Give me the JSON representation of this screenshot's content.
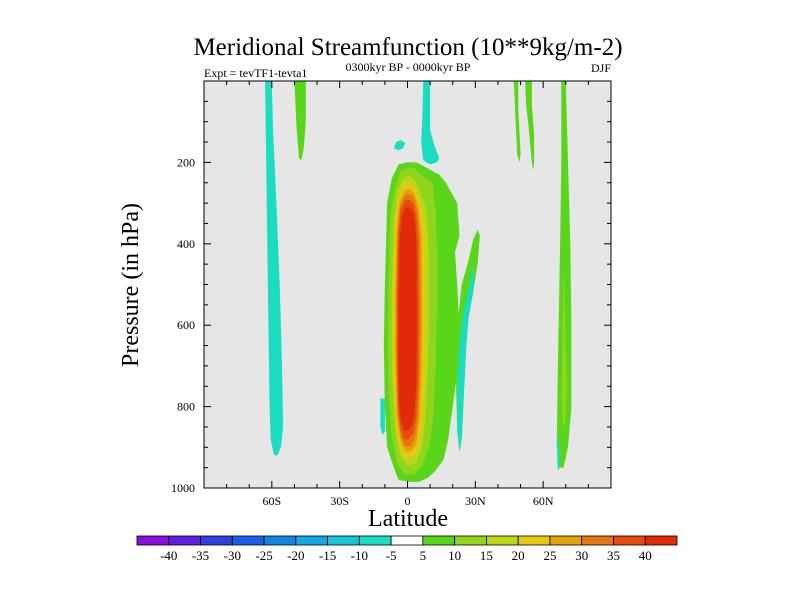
{
  "chart_data": {
    "type": "heatmap",
    "title": "Meridional Streamfunction (10**9kg/m-2)",
    "subtitle": "0300kyr BP - 0000kyr BP",
    "left_label": "Expt = tevTF1-tevta1",
    "right_label": "DJF",
    "xlabel": "Latitude",
    "ylabel": "Pressure (in hPa)",
    "xlim": [
      -90,
      90
    ],
    "ylim": [
      0,
      1000
    ],
    "y_inverted": true,
    "x_ticks": [
      {
        "value": -60,
        "label": "60S"
      },
      {
        "value": -30,
        "label": "30S"
      },
      {
        "value": 0,
        "label": "0"
      },
      {
        "value": 30,
        "label": "30N"
      },
      {
        "value": 60,
        "label": "60N"
      }
    ],
    "x_minor_ticks": [
      -80,
      -70,
      -50,
      -40,
      -20,
      -10,
      10,
      20,
      40,
      50,
      70,
      80
    ],
    "y_ticks": [
      {
        "value": 200,
        "label": "200"
      },
      {
        "value": 400,
        "label": "400"
      },
      {
        "value": 600,
        "label": "600"
      },
      {
        "value": 800,
        "label": "800"
      },
      {
        "value": 1000,
        "label": "1000"
      }
    ],
    "y_minor_ticks": [
      50,
      100,
      150,
      250,
      300,
      350,
      450,
      500,
      550,
      650,
      700,
      750,
      850,
      900,
      950
    ],
    "background_color": "#e6e6e6",
    "colorbar": {
      "levels": [
        "-40",
        "-35",
        "-30",
        "-25",
        "-20",
        "-15",
        "-10",
        "-5",
        "5",
        "10",
        "15",
        "20",
        "25",
        "30",
        "35",
        "40"
      ],
      "colors": [
        "#8a0fe0",
        "#5f1ee0",
        "#2f40e0",
        "#1f5fe6",
        "#0f86e6",
        "#12a8e6",
        "#16c6d6",
        "#1adcc0",
        "#ffffff",
        "#5ad61a",
        "#8fd61a",
        "#bcd61a",
        "#e6c80f",
        "#e6a10f",
        "#e6740f",
        "#e64a0f",
        "#e02a08"
      ]
    },
    "contours": [
      {
        "level": -5,
        "color": "#1adcc0",
        "points": [
          [
            -63,
            0
          ],
          [
            -60,
            0
          ],
          [
            -59.5,
            120
          ],
          [
            -58,
            300
          ],
          [
            -56.5,
            500
          ],
          [
            -55.5,
            700
          ],
          [
            -55,
            850
          ],
          [
            -56,
            900
          ],
          [
            -57.5,
            920
          ],
          [
            -59,
            920
          ],
          [
            -60.5,
            880
          ],
          [
            -61,
            800
          ],
          [
            -61.5,
            600
          ],
          [
            -62,
            400
          ],
          [
            -62.5,
            200
          ]
        ]
      },
      {
        "level": 5,
        "color": "#5ad61a",
        "points": [
          [
            -50,
            0
          ],
          [
            -45,
            0
          ],
          [
            -45,
            100
          ],
          [
            -46,
            170
          ],
          [
            -47,
            195
          ],
          [
            -48,
            190
          ],
          [
            -49,
            120
          ]
        ]
      },
      {
        "level": -5,
        "color": "#1adcc0",
        "points": [
          [
            7,
            0
          ],
          [
            10,
            0
          ],
          [
            10,
            120
          ],
          [
            12,
            160
          ],
          [
            14,
            190
          ],
          [
            13,
            200
          ],
          [
            10,
            205
          ],
          [
            7,
            195
          ],
          [
            6,
            150
          ],
          [
            6.5,
            100
          ]
        ]
      },
      {
        "level": -5,
        "color": "#1adcc0",
        "points": [
          [
            -5,
            150
          ],
          [
            -3,
            145
          ],
          [
            -1,
            152
          ],
          [
            -2,
            165
          ],
          [
            -4,
            170
          ],
          [
            -6,
            165
          ]
        ]
      },
      {
        "level": -5,
        "color": "#1adcc0",
        "points": [
          [
            -12,
            780
          ],
          [
            -10,
            780
          ],
          [
            -10,
            860
          ],
          [
            -11,
            870
          ],
          [
            -12,
            850
          ]
        ]
      },
      {
        "level": 5,
        "color": "#5ad61a",
        "points": [
          [
            -10,
            500
          ],
          [
            -9,
            300
          ],
          [
            -7,
            240
          ],
          [
            -4,
            205
          ],
          [
            0,
            200
          ],
          [
            4,
            200
          ],
          [
            9,
            215
          ],
          [
            14,
            230
          ],
          [
            17,
            250
          ],
          [
            22,
            300
          ],
          [
            23,
            380
          ],
          [
            21,
            420
          ],
          [
            22,
            500
          ],
          [
            23,
            620
          ],
          [
            22,
            720
          ],
          [
            20,
            800
          ],
          [
            18,
            880
          ],
          [
            16,
            930
          ],
          [
            12,
            960
          ],
          [
            9,
            975
          ],
          [
            5,
            985
          ],
          [
            1,
            985
          ],
          [
            -4,
            980
          ],
          [
            -6,
            950
          ],
          [
            -9,
            900
          ],
          [
            -10,
            800
          ],
          [
            -10.5,
            650
          ]
        ]
      },
      {
        "level": 10,
        "color": "#8fd61a",
        "points": [
          [
            -8.5,
            500
          ],
          [
            -7.5,
            330
          ],
          [
            -5.5,
            260
          ],
          [
            -3,
            220
          ],
          [
            0,
            212
          ],
          [
            3,
            215
          ],
          [
            7,
            235
          ],
          [
            11,
            250
          ],
          [
            12.5,
            320
          ],
          [
            13,
            420
          ],
          [
            13,
            560
          ],
          [
            12.5,
            700
          ],
          [
            11.5,
            820
          ],
          [
            9.5,
            900
          ],
          [
            6.5,
            945
          ],
          [
            3,
            965
          ],
          [
            -1,
            968
          ],
          [
            -4.5,
            940
          ],
          [
            -7,
            870
          ],
          [
            -8.5,
            750
          ]
        ]
      },
      {
        "level": 15,
        "color": "#bcd61a",
        "points": [
          [
            -7,
            520
          ],
          [
            -6,
            340
          ],
          [
            -4.5,
            270
          ],
          [
            -2,
            240
          ],
          [
            0.5,
            233
          ],
          [
            3,
            240
          ],
          [
            5.5,
            270
          ],
          [
            8.5,
            320
          ],
          [
            9.5,
            440
          ],
          [
            9.5,
            570
          ],
          [
            9,
            700
          ],
          [
            8,
            820
          ],
          [
            6.5,
            900
          ],
          [
            3.5,
            940
          ],
          [
            0,
            945
          ],
          [
            -3,
            925
          ],
          [
            -5.5,
            860
          ],
          [
            -6.8,
            720
          ]
        ]
      },
      {
        "level": 20,
        "color": "#e6c80f",
        "points": [
          [
            -6.2,
            520
          ],
          [
            -5.5,
            350
          ],
          [
            -4,
            285
          ],
          [
            -1.5,
            255
          ],
          [
            1,
            250
          ],
          [
            3.2,
            262
          ],
          [
            5.5,
            300
          ],
          [
            7.5,
            360
          ],
          [
            7.8,
            470
          ],
          [
            7.8,
            600
          ],
          [
            7.5,
            720
          ],
          [
            6.7,
            830
          ],
          [
            5.3,
            895
          ],
          [
            2.5,
            925
          ],
          [
            -0.5,
            928
          ],
          [
            -3.2,
            905
          ],
          [
            -5,
            850
          ],
          [
            -6,
            720
          ]
        ]
      },
      {
        "level": 25,
        "color": "#e6a10f",
        "points": [
          [
            -5.5,
            520
          ],
          [
            -4.8,
            360
          ],
          [
            -3.5,
            295
          ],
          [
            -1.2,
            268
          ],
          [
            1,
            265
          ],
          [
            3,
            275
          ],
          [
            5,
            310
          ],
          [
            6.3,
            380
          ],
          [
            6.5,
            490
          ],
          [
            6.5,
            610
          ],
          [
            6.2,
            730
          ],
          [
            5.5,
            830
          ],
          [
            4,
            890
          ],
          [
            1.8,
            910
          ],
          [
            -0.8,
            912
          ],
          [
            -3,
            888
          ],
          [
            -4.7,
            830
          ],
          [
            -5.4,
            700
          ]
        ]
      },
      {
        "level": 30,
        "color": "#e6740f",
        "points": [
          [
            -5,
            520
          ],
          [
            -4.4,
            370
          ],
          [
            -3.2,
            305
          ],
          [
            -1,
            280
          ],
          [
            1,
            277
          ],
          [
            2.8,
            288
          ],
          [
            4.5,
            320
          ],
          [
            5.5,
            390
          ],
          [
            5.7,
            500
          ],
          [
            5.7,
            620
          ],
          [
            5.4,
            740
          ],
          [
            4.6,
            830
          ],
          [
            3.2,
            880
          ],
          [
            1.2,
            898
          ],
          [
            -1.2,
            898
          ],
          [
            -3,
            872
          ],
          [
            -4.4,
            815
          ],
          [
            -4.9,
            690
          ]
        ]
      },
      {
        "level": 35,
        "color": "#e64a0f",
        "points": [
          [
            -4.5,
            520
          ],
          [
            -4,
            380
          ],
          [
            -3,
            318
          ],
          [
            -1,
            295
          ],
          [
            0.8,
            292
          ],
          [
            2.5,
            302
          ],
          [
            3.9,
            335
          ],
          [
            4.7,
            400
          ],
          [
            4.9,
            510
          ],
          [
            4.9,
            630
          ],
          [
            4.6,
            740
          ],
          [
            3.8,
            825
          ],
          [
            2.5,
            865
          ],
          [
            0.5,
            880
          ],
          [
            -1.4,
            880
          ],
          [
            -3,
            855
          ],
          [
            -4.1,
            800
          ],
          [
            -4.5,
            680
          ]
        ]
      },
      {
        "level": 40,
        "color": "#e02a08",
        "points": [
          [
            -4,
            540
          ],
          [
            -3.5,
            400
          ],
          [
            -2.6,
            335
          ],
          [
            -0.8,
            312
          ],
          [
            0.8,
            310
          ],
          [
            2.3,
            320
          ],
          [
            3.4,
            350
          ],
          [
            4,
            420
          ],
          [
            4.1,
            530
          ],
          [
            4.1,
            640
          ],
          [
            3.9,
            740
          ],
          [
            3.2,
            810
          ],
          [
            2,
            845
          ],
          [
            0.3,
            858
          ],
          [
            -1.5,
            858
          ],
          [
            -2.9,
            832
          ],
          [
            -3.8,
            780
          ],
          [
            -4.1,
            670
          ]
        ]
      },
      {
        "level": 5,
        "color": "#5ad61a",
        "points": [
          [
            22,
            600
          ],
          [
            24,
            500
          ],
          [
            27,
            440
          ],
          [
            29,
            390
          ],
          [
            31,
            365
          ],
          [
            32,
            380
          ],
          [
            31,
            450
          ],
          [
            29,
            520
          ],
          [
            27,
            580
          ],
          [
            26,
            650
          ],
          [
            25,
            760
          ],
          [
            24,
            880
          ],
          [
            23,
            910
          ],
          [
            22,
            860
          ],
          [
            21.5,
            750
          ]
        ]
      },
      {
        "level": -5,
        "color": "#1adcc0",
        "points": [
          [
            23,
            640
          ],
          [
            25,
            560
          ],
          [
            28,
            480
          ],
          [
            29.5,
            450
          ],
          [
            29,
            520
          ],
          [
            27,
            580
          ],
          [
            26,
            650
          ],
          [
            25,
            760
          ],
          [
            24,
            880
          ],
          [
            23,
            910
          ],
          [
            22,
            860
          ],
          [
            22,
            740
          ]
        ]
      },
      {
        "level": 5,
        "color": "#5ad61a",
        "points": [
          [
            47,
            0
          ],
          [
            49,
            0
          ],
          [
            49,
            70
          ],
          [
            50,
            180
          ],
          [
            49.5,
            200
          ],
          [
            48.5,
            180
          ],
          [
            47.8,
            100
          ]
        ]
      },
      {
        "level": 5,
        "color": "#5ad61a",
        "points": [
          [
            52,
            0
          ],
          [
            55,
            0
          ],
          [
            55,
            60
          ],
          [
            56,
            130
          ],
          [
            56,
            200
          ],
          [
            55.5,
            220
          ],
          [
            54.8,
            190
          ],
          [
            53.5,
            110
          ],
          [
            52.5,
            60
          ]
        ]
      },
      {
        "level": 5,
        "color": "#5ad61a",
        "points": [
          [
            68,
            0
          ],
          [
            70,
            0
          ],
          [
            71,
            200
          ],
          [
            72,
            400
          ],
          [
            72.5,
            600
          ],
          [
            72.5,
            800
          ],
          [
            71,
            900
          ],
          [
            69,
            950
          ],
          [
            67,
            950
          ],
          [
            66,
            900
          ],
          [
            66.5,
            700
          ],
          [
            67.5,
            400
          ],
          [
            68,
            200
          ]
        ]
      },
      {
        "level": 10,
        "color": "#8fd61a",
        "points": [
          [
            69,
            450
          ],
          [
            70,
            650
          ],
          [
            70.5,
            750
          ],
          [
            70,
            820
          ],
          [
            69,
            860
          ],
          [
            68.2,
            800
          ],
          [
            68.5,
            600
          ]
        ]
      },
      {
        "level": -5,
        "color": "#1adcc0",
        "points": [
          [
            66.4,
            870
          ],
          [
            67,
            880
          ],
          [
            67.3,
            940
          ],
          [
            67,
            955
          ],
          [
            66.5,
            955
          ],
          [
            66.2,
            920
          ]
        ]
      }
    ]
  }
}
